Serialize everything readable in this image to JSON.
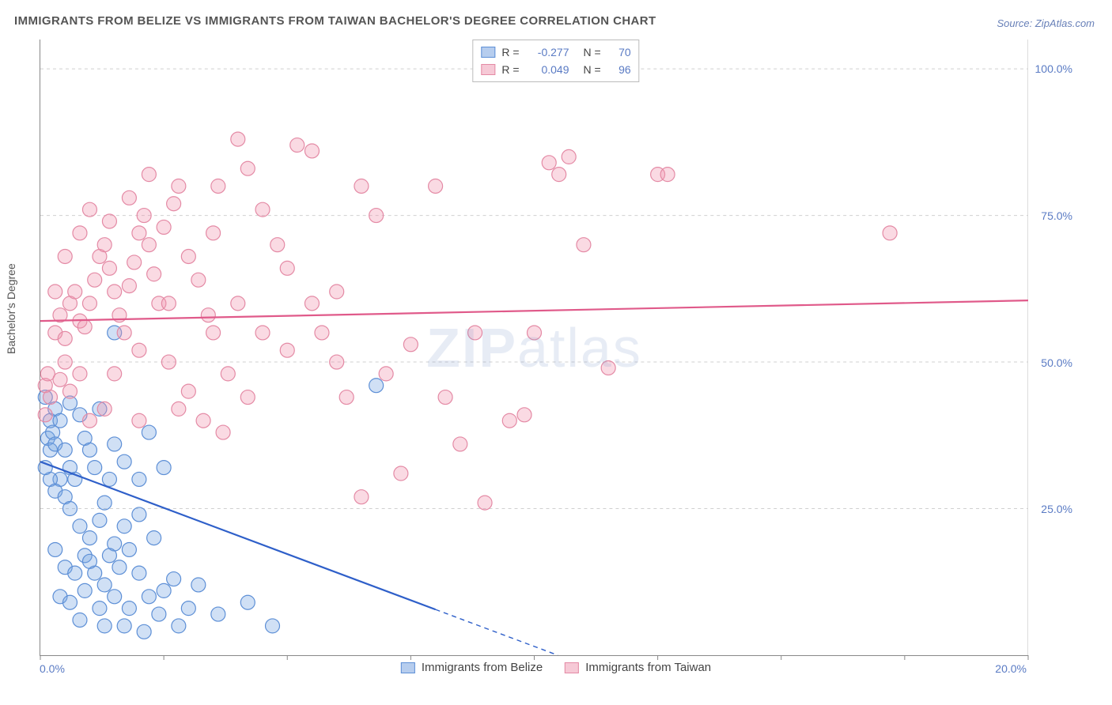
{
  "title": "IMMIGRANTS FROM BELIZE VS IMMIGRANTS FROM TAIWAN BACHELOR'S DEGREE CORRELATION CHART",
  "source": "Source: ZipAtlas.com",
  "ylabel": "Bachelor's Degree",
  "watermark_a": "ZIP",
  "watermark_b": "atlas",
  "chart": {
    "type": "scatter",
    "xlim_pct": [
      0,
      20
    ],
    "ylim_pct": [
      0,
      105
    ],
    "x_ticks_pct": [
      0,
      2.5,
      5,
      7.5,
      10,
      12.5,
      15,
      17.5,
      20
    ],
    "x_tick_labels": {
      "first": "0.0%",
      "last": "20.0%"
    },
    "y_gridlines_pct": [
      25,
      50,
      75,
      100
    ],
    "y_tick_labels": [
      "25.0%",
      "50.0%",
      "75.0%",
      "100.0%"
    ],
    "background_color": "#ffffff",
    "grid_color": "#d0d0d0",
    "axis_color": "#888888",
    "marker_radius": 9,
    "marker_stroke_width": 1.2,
    "trend_line_width": 2.2
  },
  "series": [
    {
      "id": "belize",
      "label": "Immigrants from Belize",
      "fill": "rgba(120,165,225,0.35)",
      "stroke": "#5d8fd6",
      "swatch_fill": "#b6cdee",
      "swatch_border": "#5d8fd6",
      "R": "-0.277",
      "N": "70",
      "trend_color": "#2e5fc9",
      "trend_y_at_x0": 33,
      "trend_y_at_x20": -30,
      "trend_solid_until_x": 8.0,
      "points": [
        [
          0.2,
          40
        ],
        [
          0.15,
          37
        ],
        [
          0.2,
          35
        ],
        [
          0.25,
          38
        ],
        [
          0.3,
          42
        ],
        [
          0.1,
          44
        ],
        [
          0.3,
          36
        ],
        [
          0.4,
          40
        ],
        [
          0.5,
          35
        ],
        [
          0.6,
          32
        ],
        [
          0.4,
          30
        ],
        [
          0.2,
          30
        ],
        [
          0.3,
          28
        ],
        [
          0.1,
          32
        ],
        [
          0.6,
          43
        ],
        [
          0.8,
          41
        ],
        [
          0.9,
          37
        ],
        [
          1.0,
          35
        ],
        [
          1.1,
          32
        ],
        [
          0.7,
          30
        ],
        [
          0.5,
          27
        ],
        [
          0.6,
          25
        ],
        [
          0.8,
          22
        ],
        [
          1.0,
          20
        ],
        [
          1.2,
          23
        ],
        [
          1.3,
          26
        ],
        [
          1.4,
          30
        ],
        [
          1.5,
          19
        ],
        [
          0.3,
          18
        ],
        [
          0.5,
          15
        ],
        [
          0.7,
          14
        ],
        [
          0.9,
          17
        ],
        [
          1.1,
          14
        ],
        [
          1.3,
          12
        ],
        [
          1.6,
          15
        ],
        [
          1.8,
          18
        ],
        [
          2.0,
          14
        ],
        [
          0.4,
          10
        ],
        [
          0.6,
          9
        ],
        [
          0.9,
          11
        ],
        [
          1.2,
          8
        ],
        [
          1.5,
          10
        ],
        [
          1.8,
          8
        ],
        [
          2.2,
          10
        ],
        [
          2.5,
          11
        ],
        [
          2.7,
          13
        ],
        [
          3.0,
          8
        ],
        [
          0.8,
          6
        ],
        [
          1.3,
          5
        ],
        [
          1.7,
          5
        ],
        [
          2.1,
          4
        ],
        [
          2.4,
          7
        ],
        [
          1.0,
          16
        ],
        [
          1.4,
          17
        ],
        [
          1.7,
          22
        ],
        [
          2.0,
          24
        ],
        [
          2.3,
          20
        ],
        [
          2.8,
          5
        ],
        [
          3.2,
          12
        ],
        [
          3.6,
          7
        ],
        [
          4.2,
          9
        ],
        [
          4.7,
          5
        ],
        [
          1.5,
          36
        ],
        [
          1.7,
          33
        ],
        [
          2.0,
          30
        ],
        [
          2.2,
          38
        ],
        [
          2.5,
          32
        ],
        [
          1.2,
          42
        ],
        [
          1.5,
          55
        ],
        [
          6.8,
          46
        ]
      ]
    },
    {
      "id": "taiwan",
      "label": "Immigrants from Taiwan",
      "fill": "rgba(240,150,175,0.35)",
      "stroke": "#e48aa5",
      "swatch_fill": "#f6c9d6",
      "swatch_border": "#e48aa5",
      "R": "0.049",
      "N": "96",
      "trend_color": "#e05a8a",
      "trend_y_at_x0": 57,
      "trend_y_at_x20": 60.5,
      "trend_solid_until_x": 20,
      "points": [
        [
          0.1,
          46
        ],
        [
          0.15,
          48
        ],
        [
          0.2,
          44
        ],
        [
          0.1,
          41
        ],
        [
          0.3,
          55
        ],
        [
          0.4,
          58
        ],
        [
          0.5,
          54
        ],
        [
          0.6,
          60
        ],
        [
          0.7,
          62
        ],
        [
          0.8,
          57
        ],
        [
          0.5,
          50
        ],
        [
          0.4,
          47
        ],
        [
          0.6,
          45
        ],
        [
          0.9,
          56
        ],
        [
          1.0,
          60
        ],
        [
          1.1,
          64
        ],
        [
          1.2,
          68
        ],
        [
          1.3,
          70
        ],
        [
          1.4,
          66
        ],
        [
          1.5,
          62
        ],
        [
          1.6,
          58
        ],
        [
          1.7,
          55
        ],
        [
          1.8,
          63
        ],
        [
          1.9,
          67
        ],
        [
          2.0,
          72
        ],
        [
          2.1,
          75
        ],
        [
          2.2,
          70
        ],
        [
          2.3,
          65
        ],
        [
          2.4,
          60
        ],
        [
          2.5,
          73
        ],
        [
          2.7,
          77
        ],
        [
          2.8,
          80
        ],
        [
          3.0,
          68
        ],
        [
          3.2,
          64
        ],
        [
          3.4,
          58
        ],
        [
          3.6,
          80
        ],
        [
          3.5,
          55
        ],
        [
          4.0,
          88
        ],
        [
          4.2,
          83
        ],
        [
          4.5,
          76
        ],
        [
          4.8,
          70
        ],
        [
          5.0,
          52
        ],
        [
          5.2,
          87
        ],
        [
          5.5,
          60
        ],
        [
          5.7,
          55
        ],
        [
          3.3,
          40
        ],
        [
          3.7,
          38
        ],
        [
          6.0,
          62
        ],
        [
          6.2,
          44
        ],
        [
          6.5,
          80
        ],
        [
          6.8,
          75
        ],
        [
          7.0,
          48
        ],
        [
          7.3,
          31
        ],
        [
          7.5,
          53
        ],
        [
          8.0,
          80
        ],
        [
          8.2,
          44
        ],
        [
          8.5,
          36
        ],
        [
          8.8,
          55
        ],
        [
          9.0,
          26
        ],
        [
          9.5,
          40
        ],
        [
          9.8,
          41
        ],
        [
          10.0,
          55
        ],
        [
          10.3,
          84
        ],
        [
          10.5,
          82
        ],
        [
          10.7,
          85
        ],
        [
          11.0,
          70
        ],
        [
          11.5,
          49
        ],
        [
          12.5,
          82
        ],
        [
          12.7,
          82
        ],
        [
          17.2,
          72
        ],
        [
          2.6,
          50
        ],
        [
          3.0,
          45
        ],
        [
          1.0,
          40
        ],
        [
          1.3,
          42
        ],
        [
          0.8,
          48
        ],
        [
          5.5,
          86
        ],
        [
          4.5,
          55
        ],
        [
          2.0,
          40
        ],
        [
          1.5,
          48
        ],
        [
          3.8,
          48
        ],
        [
          4.2,
          44
        ],
        [
          6.5,
          27
        ],
        [
          2.8,
          42
        ],
        [
          3.5,
          72
        ],
        [
          1.8,
          78
        ],
        [
          2.2,
          82
        ],
        [
          1.0,
          76
        ],
        [
          1.4,
          74
        ],
        [
          2.0,
          52
        ],
        [
          2.6,
          60
        ],
        [
          0.5,
          68
        ],
        [
          0.8,
          72
        ],
        [
          0.3,
          62
        ],
        [
          4.0,
          60
        ],
        [
          5.0,
          66
        ],
        [
          6.0,
          50
        ]
      ]
    }
  ]
}
